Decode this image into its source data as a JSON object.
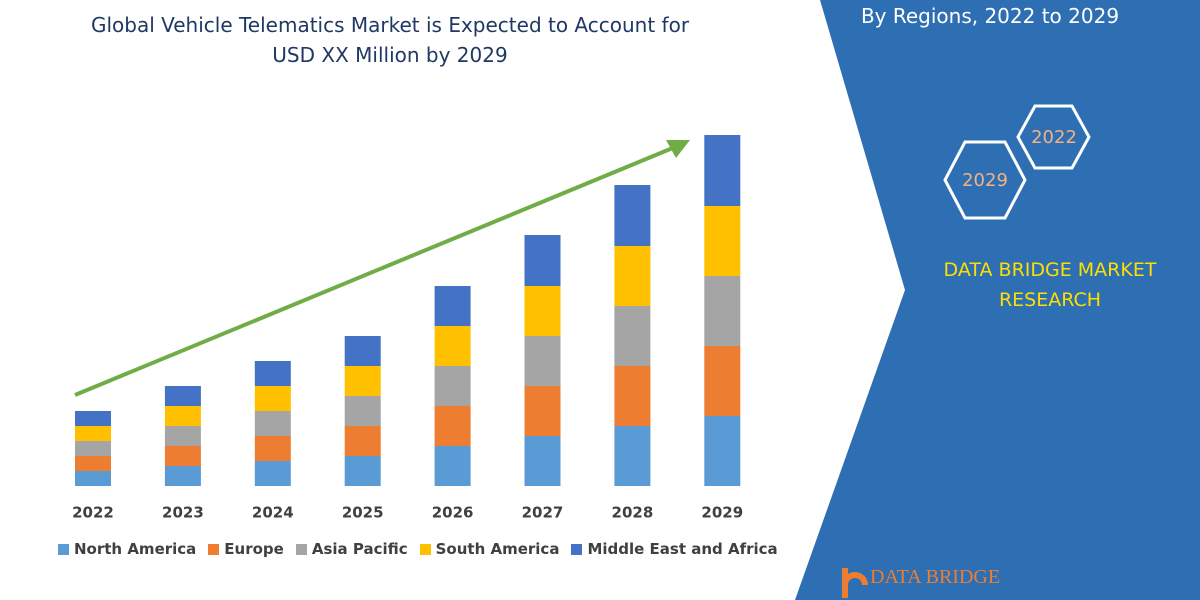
{
  "chart_data": {
    "type": "stacked-bar",
    "title": "Global Vehicle Telematics Market is Expected to Account for USD XX Million by 2029",
    "categories": [
      "2022",
      "2023",
      "2024",
      "2025",
      "2026",
      "2027",
      "2028",
      "2029"
    ],
    "series": [
      {
        "name": "North America",
        "color": "#5b9bd5",
        "values": [
          15,
          20,
          25,
          30,
          40,
          50,
          60,
          70
        ]
      },
      {
        "name": "Europe",
        "color": "#ed7d31",
        "values": [
          15,
          20,
          25,
          30,
          40,
          50,
          60,
          70
        ]
      },
      {
        "name": "Asia Pacific",
        "color": "#a5a5a5",
        "values": [
          15,
          20,
          25,
          30,
          40,
          50,
          60,
          70
        ]
      },
      {
        "name": "South America",
        "color": "#ffc000",
        "values": [
          15,
          20,
          25,
          30,
          40,
          50,
          60,
          70
        ]
      },
      {
        "name": "Middle East and Africa",
        "color": "#4472c4",
        "values": [
          15,
          20,
          25,
          30,
          40,
          51,
          61,
          71
        ]
      }
    ],
    "ylim": [
      0,
      360
    ]
  },
  "sidebar": {
    "subtitle": "By Regions, 2022 to 2029",
    "hexagons": [
      "2022",
      "2029"
    ],
    "brand": "DATA BRIDGE MARKET RESEARCH",
    "logo": "DATA BRIDGE"
  }
}
